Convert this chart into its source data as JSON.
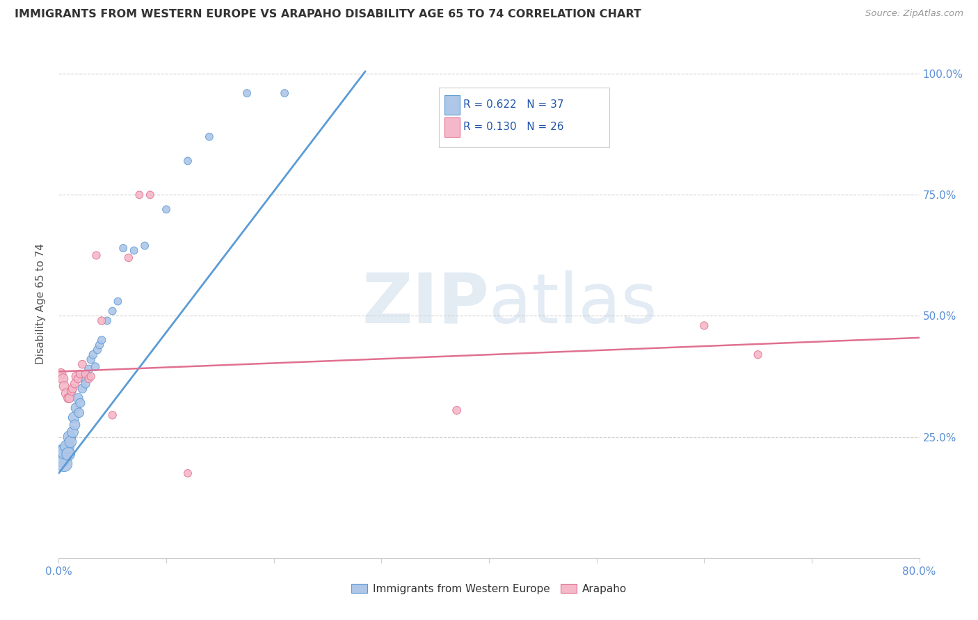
{
  "title": "IMMIGRANTS FROM WESTERN EUROPE VS ARAPAHO DISABILITY AGE 65 TO 74 CORRELATION CHART",
  "source": "Source: ZipAtlas.com",
  "ylabel": "Disability Age 65 to 74",
  "xlim": [
    0.0,
    0.8
  ],
  "ylim": [
    0.0,
    1.05
  ],
  "x_ticks": [
    0.0,
    0.1,
    0.2,
    0.3,
    0.4,
    0.5,
    0.6,
    0.7,
    0.8
  ],
  "x_tick_labels": [
    "0.0%",
    "",
    "",
    "",
    "",
    "",
    "",
    "",
    "80.0%"
  ],
  "y_ticks": [
    0.0,
    0.25,
    0.5,
    0.75,
    1.0
  ],
  "right_y_tick_labels": [
    "",
    "25.0%",
    "50.0%",
    "75.0%",
    "100.0%"
  ],
  "blue_R": 0.622,
  "blue_N": 37,
  "pink_R": 0.13,
  "pink_N": 26,
  "blue_color": "#aec6e8",
  "blue_edge_color": "#5b9bd5",
  "pink_color": "#f4b8c8",
  "pink_edge_color": "#e07090",
  "watermark_zip": "ZIP",
  "watermark_atlas": "atlas",
  "blue_scatter_x": [
    0.002,
    0.003,
    0.005,
    0.006,
    0.008,
    0.009,
    0.01,
    0.011,
    0.013,
    0.014,
    0.015,
    0.016,
    0.018,
    0.019,
    0.02,
    0.022,
    0.024,
    0.025,
    0.026,
    0.028,
    0.03,
    0.032,
    0.034,
    0.036,
    0.038,
    0.04,
    0.045,
    0.05,
    0.055,
    0.06,
    0.07,
    0.08,
    0.1,
    0.12,
    0.14,
    0.175,
    0.21
  ],
  "blue_scatter_y": [
    0.215,
    0.205,
    0.195,
    0.22,
    0.23,
    0.215,
    0.25,
    0.24,
    0.26,
    0.29,
    0.275,
    0.31,
    0.33,
    0.3,
    0.32,
    0.35,
    0.37,
    0.36,
    0.38,
    0.39,
    0.41,
    0.42,
    0.395,
    0.43,
    0.44,
    0.45,
    0.49,
    0.51,
    0.53,
    0.64,
    0.635,
    0.645,
    0.72,
    0.82,
    0.87,
    0.96,
    0.96
  ],
  "blue_scatter_sizes": [
    350,
    300,
    280,
    250,
    200,
    180,
    160,
    140,
    130,
    120,
    110,
    100,
    100,
    95,
    90,
    85,
    80,
    80,
    75,
    75,
    70,
    70,
    70,
    65,
    65,
    65,
    60,
    60,
    60,
    60,
    60,
    60,
    60,
    60,
    60,
    60,
    60
  ],
  "pink_scatter_x": [
    0.002,
    0.004,
    0.005,
    0.007,
    0.009,
    0.01,
    0.012,
    0.013,
    0.015,
    0.016,
    0.018,
    0.02,
    0.022,
    0.025,
    0.028,
    0.03,
    0.035,
    0.04,
    0.05,
    0.065,
    0.075,
    0.085,
    0.12,
    0.37,
    0.6,
    0.65
  ],
  "pink_scatter_y": [
    0.38,
    0.37,
    0.355,
    0.34,
    0.33,
    0.33,
    0.345,
    0.35,
    0.36,
    0.375,
    0.37,
    0.38,
    0.4,
    0.38,
    0.37,
    0.375,
    0.625,
    0.49,
    0.295,
    0.62,
    0.75,
    0.75,
    0.175,
    0.305,
    0.48,
    0.42
  ],
  "pink_scatter_sizes": [
    120,
    110,
    100,
    95,
    90,
    85,
    80,
    80,
    75,
    75,
    70,
    70,
    70,
    70,
    65,
    65,
    65,
    65,
    65,
    65,
    60,
    60,
    60,
    70,
    65,
    65
  ],
  "blue_line_x": [
    0.0,
    0.285
  ],
  "blue_line_y": [
    0.175,
    1.005
  ],
  "pink_line_x": [
    0.0,
    0.8
  ],
  "pink_line_y": [
    0.385,
    0.455
  ]
}
